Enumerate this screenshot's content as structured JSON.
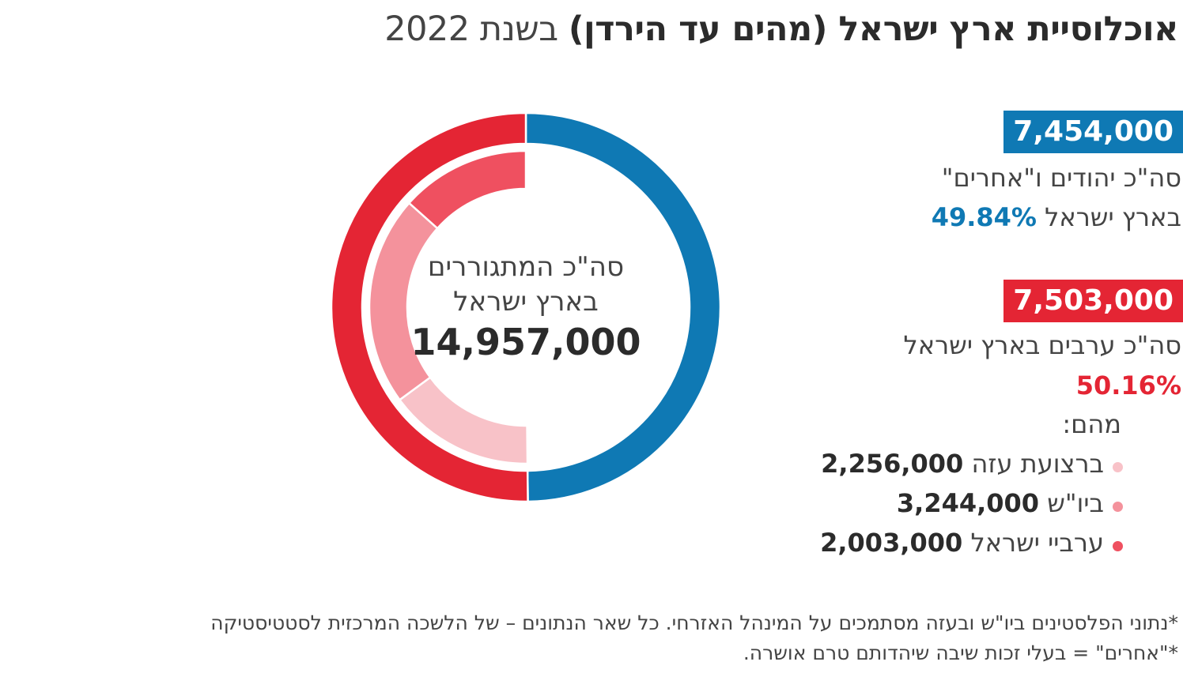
{
  "title": {
    "main": "אוכלוסיית ארץ ישראל (מהים עד הירדן)",
    "suffix": "בשנת 2022"
  },
  "colors": {
    "blue": "#0f79b4",
    "red": "#e42534",
    "pink_dark": "#ef5060",
    "pink_mid": "#f4929c",
    "pink_light": "#f8c2c8"
  },
  "center": {
    "line1": "סה\"כ המתגוררים",
    "line2": "בארץ ישראל",
    "total": "14,957,000"
  },
  "jews": {
    "value": "7,454,000",
    "label": "סה\"כ יהודים ו\"אחרים\"",
    "label2": "בארץ ישראל",
    "pct": "49.84%"
  },
  "arabs": {
    "value": "7,503,000",
    "label": "סה\"כ ערבים בארץ ישראל",
    "pct": "50.16%",
    "of_which": "מהם:"
  },
  "breakdown": [
    {
      "label": "ברצועת עזה",
      "value": "2,256,000"
    },
    {
      "label": "ביו\"ש",
      "value": "3,244,000"
    },
    {
      "label": "ערביי ישראל",
      "value": "2,003,000"
    }
  ],
  "footnotes": [
    "*נתוני הפלסטינים ביו\"ש ובעזה מסתמכים על המינהל האזרחי. כל שאר הנתונים – של הלשכה המרכזית לסטטיסטיקה",
    "*\"אחרים\" = בעלי זכות שיבה שיהדותם טרם אושרה."
  ],
  "chart_data": {
    "type": "pie",
    "title": "אוכלוסיית ארץ ישראל (מהים עד הירדן) בשנת 2022",
    "center_label": "סה\"כ המתגוררים בארץ ישראל 14,957,000",
    "total": 14957000,
    "outer_ring": [
      {
        "label": "סה\"כ יהודים ו\"אחרים\" בארץ ישראל",
        "value": 7454000,
        "percent": 49.84,
        "color": "#0f79b4"
      },
      {
        "label": "סה\"כ ערבים בארץ ישראל",
        "value": 7503000,
        "percent": 50.16,
        "color": "#e42534"
      }
    ],
    "inner_ring": [
      {
        "label": "ברצועת עזה",
        "value": 2256000,
        "color": "#f8c2c8"
      },
      {
        "label": "ביו\"ש",
        "value": 3244000,
        "color": "#f4929c"
      },
      {
        "label": "ערביי ישראל",
        "value": 2003000,
        "color": "#ef5060"
      }
    ]
  }
}
